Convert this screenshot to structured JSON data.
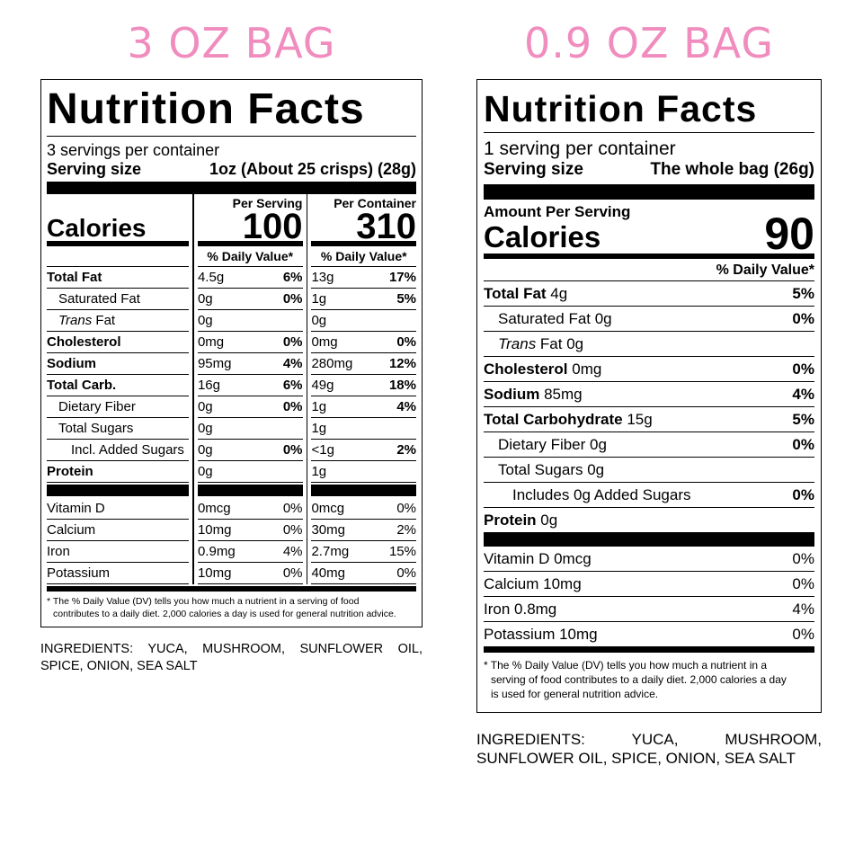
{
  "colors": {
    "heading": "#f08cbe",
    "ink": "#000000"
  },
  "left": {
    "heading": "3 OZ BAG",
    "title": "Nutrition Facts",
    "servings_per_container": "3 servings per container",
    "serving_size_label": "Serving size",
    "serving_size_value": "1oz (About 25 crisps) (28g)",
    "calories_label": "Calories",
    "per_serving_label": "Per Serving",
    "per_container_label": "Per Container",
    "calories_per_serving": "100",
    "calories_per_container": "310",
    "dv_label": "% Daily Value*",
    "nutrients": [
      {
        "name": "Total Fat",
        "s_amt": "4.5g",
        "s_pct": "6%",
        "c_amt": "13g",
        "c_pct": "17%"
      },
      {
        "name": "Saturated Fat",
        "s_amt": "0g",
        "s_pct": "0%",
        "c_amt": "1g",
        "c_pct": "5%"
      },
      {
        "name_italic": "Trans",
        "name": " Fat",
        "s_amt": "0g",
        "s_pct": "",
        "c_amt": "0g",
        "c_pct": ""
      },
      {
        "name": "Cholesterol",
        "s_amt": "0mg",
        "s_pct": "0%",
        "c_amt": "0mg",
        "c_pct": "0%"
      },
      {
        "name": "Sodium",
        "s_amt": "95mg",
        "s_pct": "4%",
        "c_amt": "280mg",
        "c_pct": "12%"
      },
      {
        "name": "Total Carb.",
        "s_amt": "16g",
        "s_pct": "6%",
        "c_amt": "49g",
        "c_pct": "18%"
      },
      {
        "name": "Dietary Fiber",
        "s_amt": "0g",
        "s_pct": "0%",
        "c_amt": "1g",
        "c_pct": "4%"
      },
      {
        "name": "Total Sugars",
        "s_amt": "0g",
        "s_pct": "",
        "c_amt": "1g",
        "c_pct": ""
      },
      {
        "name": "Incl. Added Sugars",
        "s_amt": "0g",
        "s_pct": "0%",
        "c_amt": "<1g",
        "c_pct": "2%"
      },
      {
        "name": "Protein",
        "s_amt": "0g",
        "s_pct": "",
        "c_amt": "1g",
        "c_pct": ""
      }
    ],
    "vitamins": [
      {
        "name": "Vitamin D",
        "s_amt": "0mcg",
        "s_pct": "0%",
        "c_amt": "0mcg",
        "c_pct": "0%"
      },
      {
        "name": "Calcium",
        "s_amt": "10mg",
        "s_pct": "0%",
        "c_amt": "30mg",
        "c_pct": "2%"
      },
      {
        "name": "Iron",
        "s_amt": "0.9mg",
        "s_pct": "4%",
        "c_amt": "2.7mg",
        "c_pct": "15%"
      },
      {
        "name": "Potassium",
        "s_amt": "10mg",
        "s_pct": "0%",
        "c_amt": "40mg",
        "c_pct": "0%"
      }
    ],
    "footnote_1": "* The % Daily Value (DV) tells you how much a nutrient in a serving of food",
    "footnote_2": "contributes to a daily diet. 2,000 calories a day is used for general nutrition advice.",
    "ingredients": "INGREDIENTS: YUCA, MUSHROOM, SUNFLOWER OIL, SPICE, ONION, SEA SALT"
  },
  "right": {
    "heading": "0.9 OZ BAG",
    "title": "Nutrition Facts",
    "servings_per_container": "1 serving per container",
    "serving_size_label": "Serving size",
    "serving_size_value": "The whole bag (26g)",
    "amount_per_serving": "Amount Per Serving",
    "calories_label": "Calories",
    "calories": "90",
    "dv_label": "% Daily Value*",
    "nutrients": [
      {
        "name": "Total Fat",
        "amt": " 4g",
        "pct": "5%"
      },
      {
        "name": "Saturated Fat 0g",
        "amt": "",
        "pct": "0%"
      },
      {
        "name_italic": "Trans",
        "name": " Fat 0g",
        "amt": "",
        "pct": ""
      },
      {
        "name": "Cholesterol",
        "amt": " 0mg",
        "pct": "0%"
      },
      {
        "name": "Sodium",
        "amt": " 85mg",
        "pct": "4%"
      },
      {
        "name": "Total Carbohydrate",
        "amt": " 15g",
        "pct": "5%"
      },
      {
        "name": "Dietary Fiber 0g",
        "amt": "",
        "pct": "0%"
      },
      {
        "name": "Total Sugars 0g",
        "amt": "",
        "pct": ""
      },
      {
        "name": "Includes 0g Added Sugars",
        "amt": "",
        "pct": "0%"
      },
      {
        "name": "Protein",
        "amt": " 0g",
        "pct": ""
      }
    ],
    "vitamins": [
      {
        "name": "Vitamin D 0mcg",
        "pct": "0%"
      },
      {
        "name": "Calcium 10mg",
        "pct": "0%"
      },
      {
        "name": "Iron 0.8mg",
        "pct": "4%"
      },
      {
        "name": "Potassium 10mg",
        "pct": "0%"
      }
    ],
    "footnote_1": "* The % Daily Value (DV) tells you how much a nutrient in a",
    "footnote_2": "serving of food contributes to a daily diet. 2,000 calories a day",
    "footnote_3": "is used for general nutrition advice.",
    "ingredients": "INGREDIENTS: YUCA, MUSHROOM, SUNFLOWER OIL, SPICE, ONION, SEA SALT"
  }
}
